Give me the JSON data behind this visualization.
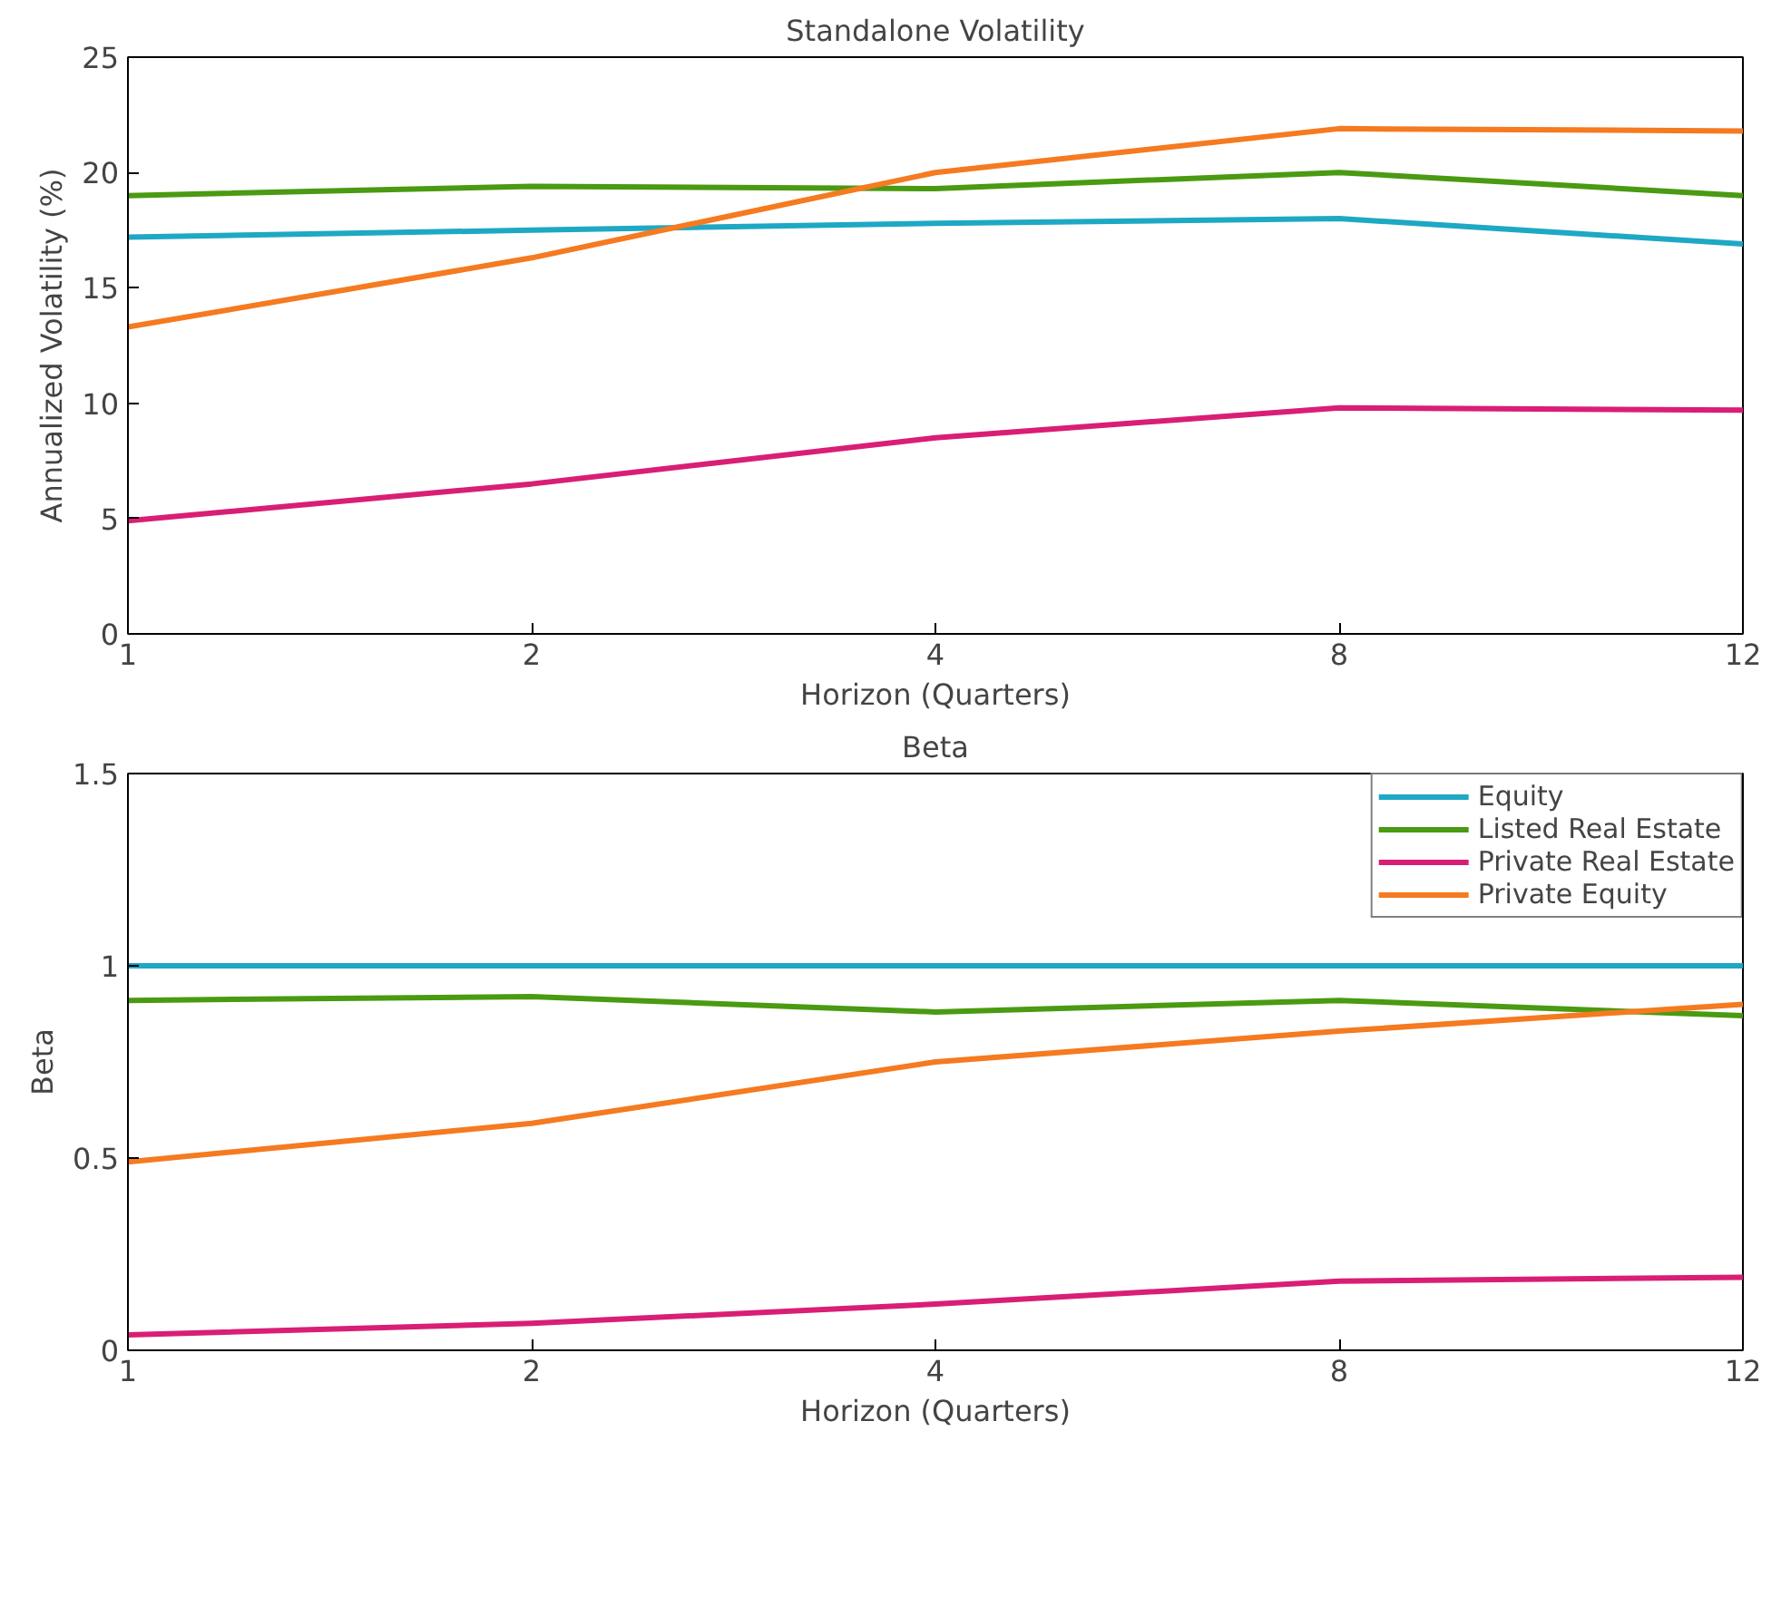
{
  "chart_data": [
    {
      "type": "line",
      "title": "Standalone Volatility",
      "xlabel": "Horizon (Quarters)",
      "ylabel": "Annualized Volatility (%)",
      "categories": [
        "1",
        "2",
        "4",
        "8",
        "12"
      ],
      "ylim": [
        0,
        25
      ],
      "yticks": [
        0,
        5,
        10,
        15,
        20,
        25
      ],
      "grid": false,
      "series": [
        {
          "color": "#1ea8c4",
          "values": [
            17.2,
            17.5,
            17.8,
            18.0,
            16.9
          ]
        },
        {
          "color": "#4a9a12",
          "values": [
            19.0,
            19.4,
            19.3,
            20.0,
            19.0
          ]
        },
        {
          "color": "#d91e75",
          "values": [
            4.9,
            6.5,
            8.5,
            9.8,
            9.7
          ]
        },
        {
          "color": "#f57a20",
          "values": [
            13.3,
            16.3,
            20.0,
            21.9,
            21.8
          ]
        }
      ]
    },
    {
      "type": "line",
      "title": "Beta",
      "xlabel": "Horizon (Quarters)",
      "ylabel": "Beta",
      "categories": [
        "1",
        "2",
        "4",
        "8",
        "12"
      ],
      "ylim": [
        0,
        1.5
      ],
      "yticks": [
        0,
        0.5,
        1,
        1.5
      ],
      "grid": false,
      "legend": "top right",
      "series": [
        {
          "name": "Equity",
          "color": "#1ea8c4",
          "values": [
            1,
            1,
            1,
            1,
            1
          ]
        },
        {
          "name": "Listed Real Estate",
          "color": "#4a9a12",
          "values": [
            0.91,
            0.92,
            0.88,
            0.91,
            0.87
          ]
        },
        {
          "name": "Private Real Estate",
          "color": "#d91e75",
          "values": [
            0.04,
            0.07,
            0.12,
            0.18,
            0.19
          ]
        },
        {
          "name": "Private Equity",
          "color": "#f57a20",
          "values": [
            0.49,
            0.59,
            0.75,
            0.83,
            0.9
          ]
        }
      ]
    }
  ]
}
